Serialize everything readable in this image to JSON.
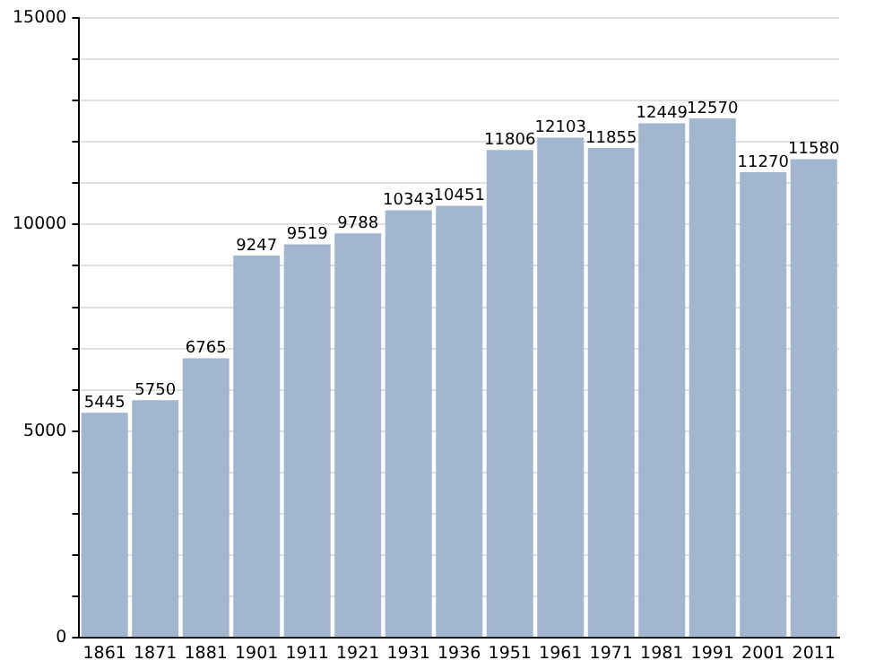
{
  "chart_data": {
    "type": "bar",
    "categories": [
      "1861",
      "1871",
      "1881",
      "1901",
      "1911",
      "1921",
      "1931",
      "1936",
      "1951",
      "1961",
      "1971",
      "1981",
      "1991",
      "2001",
      "2011"
    ],
    "values": [
      5445,
      5750,
      6765,
      9247,
      9519,
      9788,
      10343,
      10451,
      11806,
      12103,
      11855,
      12449,
      12570,
      11270,
      11580
    ],
    "color": "#a2b6d0",
    "ylim": [
      0,
      15000
    ],
    "yticks": [
      0,
      {
        "value": 1000,
        "label": null
      },
      {
        "value": 2000,
        "label": null
      },
      {
        "value": 3000,
        "label": null
      },
      {
        "value": 4000,
        "label": null
      },
      5000,
      {
        "value": 6000,
        "label": null
      },
      {
        "value": 7000,
        "label": null
      },
      {
        "value": 8000,
        "label": null
      },
      {
        "value": 9000,
        "label": null
      },
      10000,
      {
        "value": 11000,
        "label": null
      },
      {
        "value": 12000,
        "label": null
      },
      {
        "value": 13000,
        "label": null
      },
      {
        "value": 14000,
        "label": null
      },
      15000
    ],
    "grid": "y",
    "data_labels": true
  }
}
